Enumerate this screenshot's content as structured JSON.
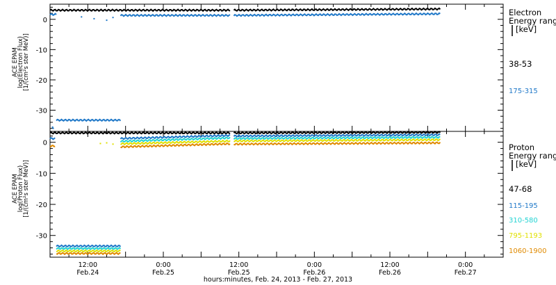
{
  "chart_data": [
    {
      "type": "scatter",
      "ylabel_lines": [
        "ACE EPAM",
        "log(Electron Flux)",
        "[1/(cm²s ster MeV)]"
      ],
      "legend_title": [
        "Electron",
        "Energy ranges",
        "[keV]"
      ],
      "ylim": [
        -37,
        5
      ],
      "yticks": [
        0,
        -10,
        -20,
        -30
      ],
      "series": [
        {
          "name": "38-53",
          "color": "#000000",
          "segments": [
            {
              "x0": 0,
              "x1": 28.6,
              "y0": 3.0,
              "y1": 3.0
            },
            {
              "x0": 29.2,
              "x1": 62,
              "y0": 3.0,
              "y1": 3.4
            }
          ]
        },
        {
          "name": "175-315",
          "color": "#1f78c8",
          "segments": [
            {
              "x0": 0.0,
              "x1": 1.0,
              "y0": 1.6,
              "y1": 1.6
            },
            {
              "x0": 1.0,
              "x1": 11.2,
              "y0": -33.3,
              "y1": -33.3
            },
            {
              "x0": 11.2,
              "x1": 28.6,
              "y0": 1.3,
              "y1": 1.3
            },
            {
              "x0": 29.2,
              "x1": 62,
              "y0": 1.3,
              "y1": 1.8
            }
          ],
          "points": [
            {
              "x": 0.4,
              "y": -35.6
            },
            {
              "x": 0.5,
              "y": -36.0
            },
            {
              "x": 5,
              "y": 0.8
            },
            {
              "x": 7,
              "y": 0.2
            },
            {
              "x": 9,
              "y": -0.3
            },
            {
              "x": 10,
              "y": 0.6
            }
          ]
        }
      ]
    },
    {
      "type": "scatter",
      "ylabel_lines": [
        "ACE EPAM",
        "log(Proton Flux)",
        "[1/(cm²s ster MeV)]"
      ],
      "legend_title": [
        "Proton",
        "Energy ranges",
        "[keV]"
      ],
      "ylim": [
        -37,
        3.5
      ],
      "yticks": [
        0,
        -10,
        -20,
        -30
      ],
      "series": [
        {
          "name": "47-68",
          "color": "#000000",
          "segments": [
            {
              "x0": 0,
              "x1": 28.6,
              "y0": 3.0,
              "y1": 3.0
            },
            {
              "x0": 29.2,
              "x1": 62,
              "y0": 3.0,
              "y1": 3.2
            }
          ]
        },
        {
          "name": "115-195",
          "color": "#1f78c8",
          "segments": [
            {
              "x0": 0,
              "x1": 0.8,
              "y0": 1.2,
              "y1": 1.2
            },
            {
              "x0": 1.0,
              "x1": 11.2,
              "y0": -33.4,
              "y1": -33.4
            },
            {
              "x0": 11.2,
              "x1": 28.6,
              "y0": 1.2,
              "y1": 2.2
            },
            {
              "x0": 29.2,
              "x1": 62,
              "y0": 2.0,
              "y1": 2.4
            }
          ]
        },
        {
          "name": "310-580",
          "color": "#22d3d3",
          "segments": [
            {
              "x0": 1.0,
              "x1": 11.2,
              "y0": -34.2,
              "y1": -34.2
            },
            {
              "x0": 11.2,
              "x1": 28.6,
              "y0": 0.3,
              "y1": 1.4
            },
            {
              "x0": 29.2,
              "x1": 62,
              "y0": 1.2,
              "y1": 1.6
            }
          ]
        },
        {
          "name": "795-1193",
          "color": "#e0e000",
          "segments": [
            {
              "x0": 1.0,
              "x1": 11.2,
              "y0": -35.0,
              "y1": -35.0
            },
            {
              "x0": 11.2,
              "x1": 28.6,
              "y0": -0.5,
              "y1": 0.4
            },
            {
              "x0": 29.2,
              "x1": 62,
              "y0": 0.4,
              "y1": 0.8
            }
          ],
          "points": [
            {
              "x": 8,
              "y": -0.4
            },
            {
              "x": 9,
              "y": -0.2
            },
            {
              "x": 10,
              "y": -0.6
            }
          ]
        },
        {
          "name": "1060-1900",
          "color": "#e08a00",
          "segments": [
            {
              "x0": 0,
              "x1": 0.8,
              "y0": -1.2,
              "y1": -1.2
            },
            {
              "x0": 1.0,
              "x1": 11.2,
              "y0": -35.8,
              "y1": -35.8
            },
            {
              "x0": 11.2,
              "x1": 28.6,
              "y0": -1.5,
              "y1": -0.5
            },
            {
              "x0": 29.2,
              "x1": 62,
              "y0": -0.6,
              "y1": -0.2
            }
          ]
        }
      ]
    }
  ],
  "x_axis": {
    "xlim": [
      0,
      72
    ],
    "ticks": [
      {
        "value": 6,
        "time": "12:00",
        "date": "Feb.24"
      },
      {
        "value": 18,
        "time": "0:00",
        "date": "Feb.25"
      },
      {
        "value": 30,
        "time": "12:00",
        "date": "Feb.25"
      },
      {
        "value": 42,
        "time": "0:00",
        "date": "Feb.26"
      },
      {
        "value": 54,
        "time": "12:00",
        "date": "Feb.26"
      },
      {
        "value": 66,
        "time": "0:00",
        "date": "Feb.27"
      }
    ],
    "xlabel": "hours:minutes, Feb. 24, 2013 - Feb. 27, 2013"
  }
}
